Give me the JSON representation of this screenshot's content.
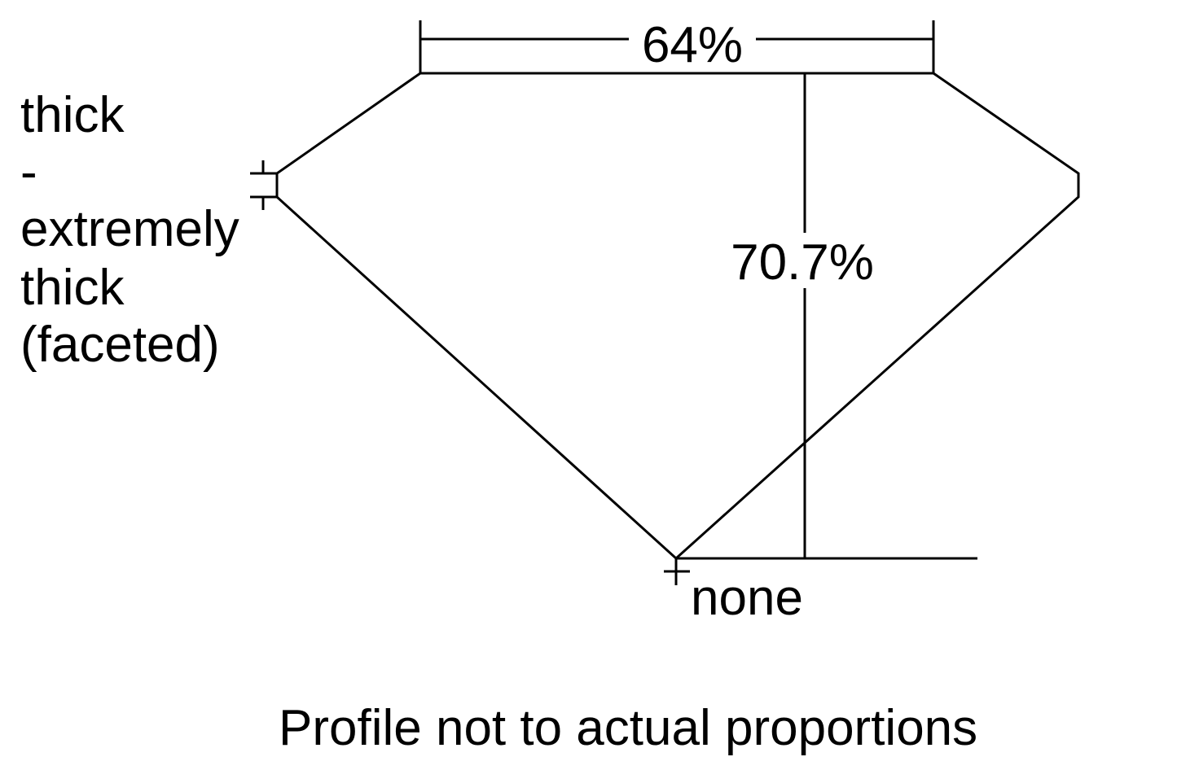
{
  "diagram": {
    "table_label": "64%",
    "depth_label": "70.7%",
    "girdle_label_lines": [
      "thick",
      "-",
      "extremely",
      "thick",
      "(faceted)"
    ],
    "culet_label": "none",
    "footer_note": "Profile not to actual proportions",
    "line_color": "#000000",
    "background": "#ffffff"
  }
}
